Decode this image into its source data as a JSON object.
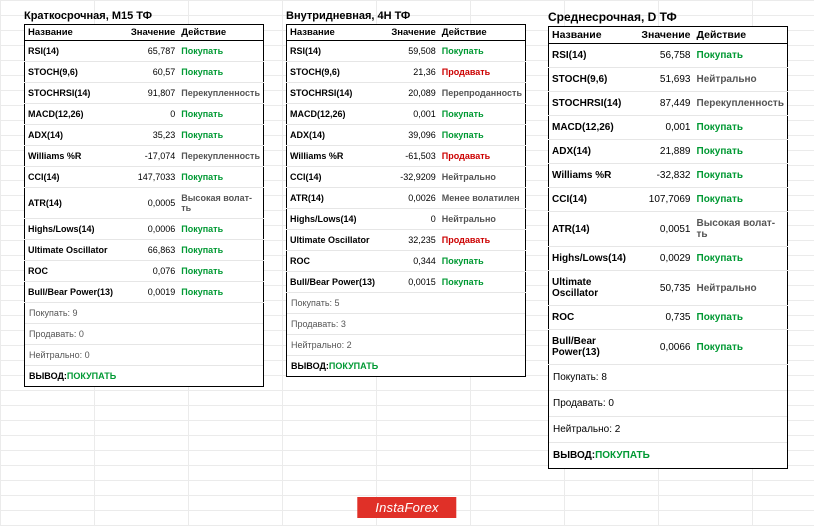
{
  "logo": "InstaForex",
  "columns": {
    "name": "Название",
    "value": "Значение",
    "action": "Действие"
  },
  "action_labels": {
    "buy": "Покупать",
    "sell": "Продавать",
    "neutral": "Нейтрально",
    "overbought": "Перекупленность",
    "oversold": "Перепроданность",
    "high_vol": "Высокая волат-ть",
    "less_vol": "Менее волатилен"
  },
  "summary_labels": {
    "buy": "Покупать:",
    "sell": "Продавать:",
    "neutral": "Нейтрально:",
    "conclusion": "ВЫВОД:"
  },
  "panels": [
    {
      "title": "Краткосрочная, М15 ТФ",
      "size": "small",
      "rows": [
        {
          "name": "RSI(14)",
          "value": "65,787",
          "action": "Покупать",
          "cls": "buy"
        },
        {
          "name": "STOCH(9,6)",
          "value": "60,57",
          "action": "Покупать",
          "cls": "buy"
        },
        {
          "name": "STOCHRSI(14)",
          "value": "91,807",
          "action": "Перекупленность",
          "cls": "neutral"
        },
        {
          "name": "MACD(12,26)",
          "value": "0",
          "action": "Покупать",
          "cls": "buy"
        },
        {
          "name": "ADX(14)",
          "value": "35,23",
          "action": "Покупать",
          "cls": "buy"
        },
        {
          "name": "Williams %R",
          "value": "-17,074",
          "action": "Перекупленность",
          "cls": "neutral"
        },
        {
          "name": "CCI(14)",
          "value": "147,7033",
          "action": "Покупать",
          "cls": "buy"
        },
        {
          "name": "ATR(14)",
          "value": "0,0005",
          "action": "Высокая волат-ть",
          "cls": "neutral"
        },
        {
          "name": "Highs/Lows(14)",
          "value": "0,0006",
          "action": "Покупать",
          "cls": "buy"
        },
        {
          "name": "Ultimate Oscillator",
          "value": "66,863",
          "action": "Покупать",
          "cls": "buy"
        },
        {
          "name": "ROC",
          "value": "0,076",
          "action": "Покупать",
          "cls": "buy"
        },
        {
          "name": "Bull/Bear Power(13)",
          "value": "0,0019",
          "action": "Покупать",
          "cls": "buy"
        }
      ],
      "summary": {
        "buy": "9",
        "sell": "0",
        "neutral": "0",
        "conclusion": "ПОКУПАТЬ"
      }
    },
    {
      "title": "Внутридневная, 4Н ТФ",
      "size": "small",
      "rows": [
        {
          "name": "RSI(14)",
          "value": "59,508",
          "action": "Покупать",
          "cls": "buy"
        },
        {
          "name": "STOCH(9,6)",
          "value": "21,36",
          "action": "Продавать",
          "cls": "sell"
        },
        {
          "name": "STOCHRSI(14)",
          "value": "20,089",
          "action": "Перепроданность",
          "cls": "neutral"
        },
        {
          "name": "MACD(12,26)",
          "value": "0,001",
          "action": "Покупать",
          "cls": "buy"
        },
        {
          "name": "ADX(14)",
          "value": "39,096",
          "action": "Покупать",
          "cls": "buy"
        },
        {
          "name": "Williams %R",
          "value": "-61,503",
          "action": "Продавать",
          "cls": "sell"
        },
        {
          "name": "CCI(14)",
          "value": "-32,9209",
          "action": "Нейтрально",
          "cls": "neutral"
        },
        {
          "name": "ATR(14)",
          "value": "0,0026",
          "action": "Менее волатилен",
          "cls": "neutral"
        },
        {
          "name": "Highs/Lows(14)",
          "value": "0",
          "action": "Нейтрально",
          "cls": "neutral"
        },
        {
          "name": "Ultimate Oscillator",
          "value": "32,235",
          "action": "Продавать",
          "cls": "sell"
        },
        {
          "name": "ROC",
          "value": "0,344",
          "action": "Покупать",
          "cls": "buy"
        },
        {
          "name": "Bull/Bear Power(13)",
          "value": "0,0015",
          "action": "Покупать",
          "cls": "buy"
        }
      ],
      "summary": {
        "buy": "5",
        "sell": "3",
        "neutral": "2",
        "conclusion": "ПОКУПАТЬ"
      }
    },
    {
      "title": "Среднесрочная, D ТФ",
      "size": "large",
      "rows": [
        {
          "name": "RSI(14)",
          "value": "56,758",
          "action": "Покупать",
          "cls": "buy"
        },
        {
          "name": "STOCH(9,6)",
          "value": "51,693",
          "action": "Нейтрально",
          "cls": "neutral"
        },
        {
          "name": "STOCHRSI(14)",
          "value": "87,449",
          "action": "Перекупленность",
          "cls": "neutral"
        },
        {
          "name": "MACD(12,26)",
          "value": "0,001",
          "action": "Покупать",
          "cls": "buy"
        },
        {
          "name": "ADX(14)",
          "value": "21,889",
          "action": "Покупать",
          "cls": "buy"
        },
        {
          "name": "Williams %R",
          "value": "-32,832",
          "action": "Покупать",
          "cls": "buy"
        },
        {
          "name": "CCI(14)",
          "value": "107,7069",
          "action": "Покупать",
          "cls": "buy"
        },
        {
          "name": "ATR(14)",
          "value": "0,0051",
          "action": "Высокая волат-ть",
          "cls": "neutral"
        },
        {
          "name": "Highs/Lows(14)",
          "value": "0,0029",
          "action": "Покупать",
          "cls": "buy"
        },
        {
          "name": "Ultimate Oscillator",
          "value": "50,735",
          "action": "Нейтрально",
          "cls": "neutral"
        },
        {
          "name": "ROC",
          "value": "0,735",
          "action": "Покупать",
          "cls": "buy"
        },
        {
          "name": "Bull/Bear Power(13)",
          "value": "0,0066",
          "action": "Покупать",
          "cls": "buy"
        }
      ],
      "summary": {
        "buy": "8",
        "sell": "0",
        "neutral": "2",
        "conclusion": "ПОКУПАТЬ"
      }
    }
  ]
}
